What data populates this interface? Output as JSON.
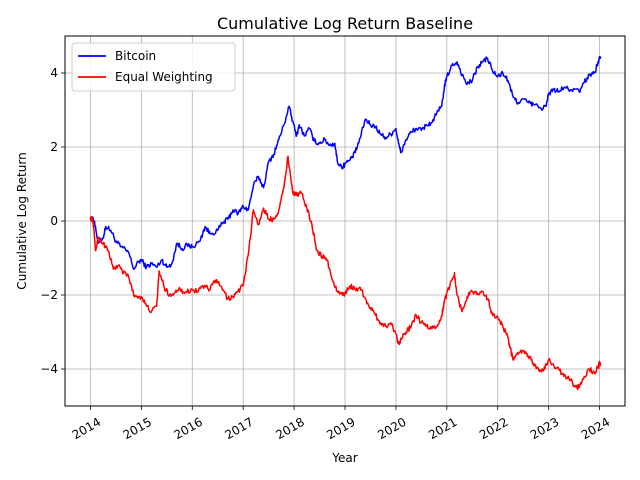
{
  "chart_data": {
    "type": "line",
    "title": "Cumulative Log Return Baseline",
    "xlabel": "Year",
    "ylabel": "Cumulative Log Return",
    "xlim": [
      2013.5,
      2024.5
    ],
    "ylim": [
      -5,
      5
    ],
    "x_ticks": [
      "2014",
      "2015",
      "2016",
      "2017",
      "2018",
      "2019",
      "2020",
      "2021",
      "2022",
      "2023",
      "2024"
    ],
    "y_ticks": [
      -4,
      -2,
      0,
      2,
      4
    ],
    "grid": true,
    "legend_position": "upper-left",
    "series": [
      {
        "name": "Bitcoin",
        "color": "#0000ff",
        "points": [
          [
            2014.0,
            0.1
          ],
          [
            2014.08,
            0.0
          ],
          [
            2014.15,
            -0.6
          ],
          [
            2014.25,
            -0.45
          ],
          [
            2014.3,
            -0.15
          ],
          [
            2014.4,
            -0.25
          ],
          [
            2014.5,
            -0.55
          ],
          [
            2014.6,
            -0.7
          ],
          [
            2014.75,
            -0.85
          ],
          [
            2014.85,
            -1.3
          ],
          [
            2014.95,
            -1.1
          ],
          [
            2015.0,
            -1.05
          ],
          [
            2015.1,
            -1.25
          ],
          [
            2015.2,
            -1.15
          ],
          [
            2015.3,
            -1.25
          ],
          [
            2015.4,
            -1.05
          ],
          [
            2015.5,
            -1.25
          ],
          [
            2015.6,
            -1.15
          ],
          [
            2015.7,
            -0.6
          ],
          [
            2015.8,
            -0.75
          ],
          [
            2015.9,
            -0.65
          ],
          [
            2016.0,
            -0.7
          ],
          [
            2016.15,
            -0.55
          ],
          [
            2016.25,
            -0.15
          ],
          [
            2016.35,
            -0.35
          ],
          [
            2016.5,
            -0.25
          ],
          [
            2016.6,
            -0.05
          ],
          [
            2016.7,
            0.05
          ],
          [
            2016.8,
            0.3
          ],
          [
            2016.9,
            0.2
          ],
          [
            2017.0,
            0.4
          ],
          [
            2017.1,
            0.3
          ],
          [
            2017.2,
            0.95
          ],
          [
            2017.3,
            1.2
          ],
          [
            2017.4,
            0.9
          ],
          [
            2017.5,
            1.6
          ],
          [
            2017.6,
            1.8
          ],
          [
            2017.7,
            2.2
          ],
          [
            2017.8,
            2.6
          ],
          [
            2017.9,
            3.1
          ],
          [
            2017.97,
            2.7
          ],
          [
            2018.05,
            2.3
          ],
          [
            2018.1,
            2.6
          ],
          [
            2018.2,
            2.3
          ],
          [
            2018.3,
            2.5
          ],
          [
            2018.4,
            2.15
          ],
          [
            2018.5,
            2.1
          ],
          [
            2018.6,
            2.2
          ],
          [
            2018.7,
            2.05
          ],
          [
            2018.8,
            2.1
          ],
          [
            2018.85,
            1.6
          ],
          [
            2018.95,
            1.45
          ],
          [
            2019.0,
            1.55
          ],
          [
            2019.1,
            1.65
          ],
          [
            2019.2,
            1.85
          ],
          [
            2019.3,
            2.25
          ],
          [
            2019.4,
            2.75
          ],
          [
            2019.5,
            2.6
          ],
          [
            2019.6,
            2.55
          ],
          [
            2019.7,
            2.35
          ],
          [
            2019.8,
            2.25
          ],
          [
            2019.9,
            2.35
          ],
          [
            2020.0,
            2.5
          ],
          [
            2020.05,
            2.1
          ],
          [
            2020.1,
            1.85
          ],
          [
            2020.2,
            2.2
          ],
          [
            2020.3,
            2.4
          ],
          [
            2020.4,
            2.5
          ],
          [
            2020.5,
            2.45
          ],
          [
            2020.6,
            2.6
          ],
          [
            2020.7,
            2.65
          ],
          [
            2020.8,
            2.9
          ],
          [
            2020.9,
            3.1
          ],
          [
            2020.95,
            3.6
          ],
          [
            2021.0,
            3.9
          ],
          [
            2021.1,
            4.2
          ],
          [
            2021.2,
            4.3
          ],
          [
            2021.3,
            3.95
          ],
          [
            2021.4,
            3.7
          ],
          [
            2021.5,
            3.8
          ],
          [
            2021.6,
            4.15
          ],
          [
            2021.7,
            4.3
          ],
          [
            2021.8,
            4.4
          ],
          [
            2021.9,
            4.05
          ],
          [
            2022.0,
            3.9
          ],
          [
            2022.1,
            4.0
          ],
          [
            2022.2,
            3.8
          ],
          [
            2022.3,
            3.35
          ],
          [
            2022.4,
            3.2
          ],
          [
            2022.5,
            3.3
          ],
          [
            2022.6,
            3.2
          ],
          [
            2022.7,
            3.15
          ],
          [
            2022.85,
            3.05
          ],
          [
            2022.95,
            3.1
          ],
          [
            2023.0,
            3.45
          ],
          [
            2023.1,
            3.55
          ],
          [
            2023.2,
            3.5
          ],
          [
            2023.3,
            3.6
          ],
          [
            2023.45,
            3.55
          ],
          [
            2023.6,
            3.5
          ],
          [
            2023.7,
            3.75
          ],
          [
            2023.8,
            3.95
          ],
          [
            2023.9,
            4.0
          ],
          [
            2023.97,
            4.3
          ],
          [
            2024.02,
            4.45
          ]
        ]
      },
      {
        "name": "Equal Weighting",
        "color": "#ff0000",
        "points": [
          [
            2014.0,
            0.1
          ],
          [
            2014.05,
            0.0
          ],
          [
            2014.1,
            -0.8
          ],
          [
            2014.15,
            -0.45
          ],
          [
            2014.25,
            -0.6
          ],
          [
            2014.35,
            -0.8
          ],
          [
            2014.45,
            -1.3
          ],
          [
            2014.55,
            -1.2
          ],
          [
            2014.65,
            -1.4
          ],
          [
            2014.75,
            -1.5
          ],
          [
            2014.85,
            -2.0
          ],
          [
            2014.95,
            -2.05
          ],
          [
            2015.0,
            -2.05
          ],
          [
            2015.1,
            -2.3
          ],
          [
            2015.2,
            -2.45
          ],
          [
            2015.3,
            -2.3
          ],
          [
            2015.35,
            -1.35
          ],
          [
            2015.45,
            -1.8
          ],
          [
            2015.55,
            -2.0
          ],
          [
            2015.65,
            -1.95
          ],
          [
            2015.75,
            -1.8
          ],
          [
            2015.85,
            -1.95
          ],
          [
            2016.0,
            -1.85
          ],
          [
            2016.1,
            -1.9
          ],
          [
            2016.2,
            -1.75
          ],
          [
            2016.35,
            -1.85
          ],
          [
            2016.45,
            -1.6
          ],
          [
            2016.55,
            -1.75
          ],
          [
            2016.7,
            -2.1
          ],
          [
            2016.8,
            -2.05
          ],
          [
            2016.9,
            -1.9
          ],
          [
            2017.0,
            -1.75
          ],
          [
            2017.1,
            -0.9
          ],
          [
            2017.2,
            0.3
          ],
          [
            2017.3,
            -0.1
          ],
          [
            2017.4,
            0.35
          ],
          [
            2017.5,
            0.05
          ],
          [
            2017.6,
            0.05
          ],
          [
            2017.7,
            0.3
          ],
          [
            2017.8,
            0.9
          ],
          [
            2017.88,
            1.75
          ],
          [
            2017.97,
            0.8
          ],
          [
            2018.05,
            0.7
          ],
          [
            2018.15,
            0.75
          ],
          [
            2018.25,
            0.35
          ],
          [
            2018.35,
            -0.1
          ],
          [
            2018.45,
            -0.8
          ],
          [
            2018.55,
            -0.95
          ],
          [
            2018.65,
            -1.05
          ],
          [
            2018.75,
            -1.6
          ],
          [
            2018.85,
            -1.9
          ],
          [
            2018.95,
            -2.0
          ],
          [
            2019.0,
            -1.95
          ],
          [
            2019.1,
            -1.75
          ],
          [
            2019.2,
            -1.85
          ],
          [
            2019.3,
            -1.8
          ],
          [
            2019.4,
            -2.1
          ],
          [
            2019.5,
            -2.35
          ],
          [
            2019.6,
            -2.55
          ],
          [
            2019.7,
            -2.75
          ],
          [
            2019.8,
            -2.85
          ],
          [
            2019.9,
            -2.75
          ],
          [
            2020.0,
            -3.05
          ],
          [
            2020.05,
            -3.3
          ],
          [
            2020.1,
            -3.2
          ],
          [
            2020.2,
            -3.0
          ],
          [
            2020.3,
            -2.85
          ],
          [
            2020.4,
            -2.55
          ],
          [
            2020.5,
            -2.75
          ],
          [
            2020.6,
            -2.85
          ],
          [
            2020.7,
            -2.9
          ],
          [
            2020.8,
            -2.85
          ],
          [
            2020.9,
            -2.55
          ],
          [
            2020.95,
            -2.2
          ],
          [
            2021.0,
            -1.95
          ],
          [
            2021.1,
            -1.6
          ],
          [
            2021.15,
            -1.4
          ],
          [
            2021.2,
            -2.0
          ],
          [
            2021.3,
            -2.45
          ],
          [
            2021.4,
            -2.05
          ],
          [
            2021.5,
            -1.9
          ],
          [
            2021.6,
            -1.95
          ],
          [
            2021.7,
            -1.9
          ],
          [
            2021.8,
            -2.1
          ],
          [
            2021.9,
            -2.55
          ],
          [
            2022.0,
            -2.6
          ],
          [
            2022.1,
            -2.85
          ],
          [
            2022.2,
            -3.15
          ],
          [
            2022.25,
            -3.45
          ],
          [
            2022.3,
            -3.75
          ],
          [
            2022.4,
            -3.6
          ],
          [
            2022.5,
            -3.5
          ],
          [
            2022.6,
            -3.65
          ],
          [
            2022.7,
            -3.85
          ],
          [
            2022.8,
            -4.0
          ],
          [
            2022.9,
            -4.05
          ],
          [
            2023.0,
            -3.75
          ],
          [
            2023.1,
            -3.9
          ],
          [
            2023.2,
            -4.0
          ],
          [
            2023.3,
            -4.2
          ],
          [
            2023.4,
            -4.25
          ],
          [
            2023.5,
            -4.45
          ],
          [
            2023.6,
            -4.5
          ],
          [
            2023.7,
            -4.2
          ],
          [
            2023.8,
            -4.0
          ],
          [
            2023.9,
            -4.1
          ],
          [
            2023.97,
            -3.95
          ],
          [
            2024.0,
            -3.85
          ],
          [
            2024.02,
            -3.9
          ]
        ]
      }
    ]
  }
}
